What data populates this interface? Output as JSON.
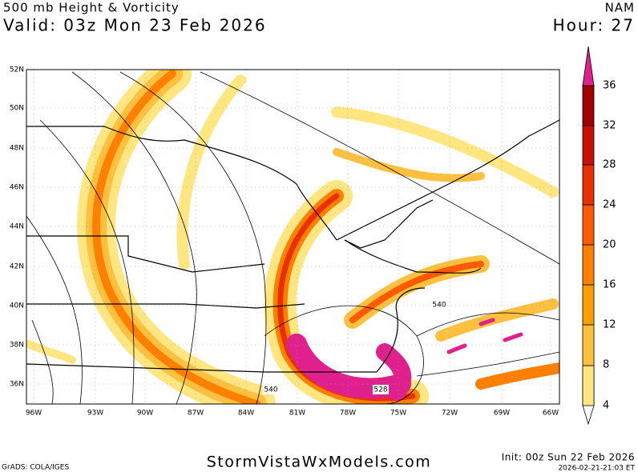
{
  "header": {
    "title": "500 mb Height & Vorticity",
    "valid": "Valid: 03z Mon 23 Feb 2026",
    "model": "NAM",
    "hour": "Hour: 27"
  },
  "map": {
    "lat_labels": [
      "52N",
      "50N",
      "48N",
      "46N",
      "44N",
      "42N",
      "40N",
      "38N",
      "36N"
    ],
    "lon_labels": [
      "96W",
      "93W",
      "90W",
      "87W",
      "84W",
      "81W",
      "78W",
      "75W",
      "72W",
      "69W",
      "66W"
    ],
    "contour_labels": [
      "540",
      "540",
      "528"
    ]
  },
  "colorbar": {
    "labels": [
      "36",
      "32",
      "28",
      "24",
      "20",
      "16",
      "12",
      "8",
      "4"
    ]
  },
  "footer": {
    "credit": "GrADS: COLA/IGES",
    "site": "StormVistaWxModels.com",
    "init": "Init: 00z Sun 22 Feb 2026",
    "timestamp": "2026-02-21-21:03 ET"
  }
}
